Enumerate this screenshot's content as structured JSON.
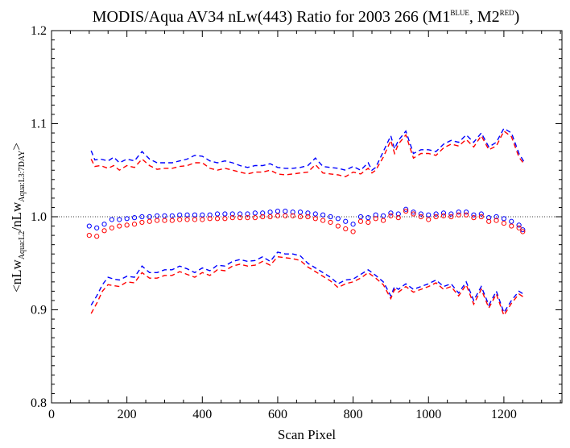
{
  "chart_data": {
    "type": "scatter",
    "title": {
      "main": "MODIS/Aqua AV34 nLw(443) Ratio for 2003 266 (M1",
      "sup1": "BLUE",
      "mid": ", M2",
      "sup2": "RED",
      "end": ")"
    },
    "xlabel": "Scan Pixel",
    "ylabel": {
      "p1": "<nLw",
      "sub1": "Aqua:L2",
      "p2": "/nLw",
      "sub2": "Aqua:L3:7DAY",
      "p3": ">"
    },
    "xlim": [
      0,
      1354
    ],
    "ylim": [
      0.8,
      1.2
    ],
    "xticks": [
      0,
      200,
      400,
      600,
      800,
      1000,
      1200
    ],
    "yticks": [
      0.8,
      0.9,
      1.0,
      1.1,
      1.2
    ],
    "ytick_labels": [
      "0.8",
      "0.9",
      "1.0",
      "1.1",
      "1.2"
    ],
    "reference_line": {
      "y": 1.0,
      "style": "dotted"
    },
    "colors": {
      "M1": "#0000ff",
      "M2": "#ff0000"
    },
    "series": [
      {
        "method": "M1",
        "kind": "mean-scatter",
        "x": [
          100,
          120,
          140,
          160,
          180,
          200,
          220,
          240,
          260,
          280,
          300,
          320,
          340,
          360,
          380,
          400,
          420,
          440,
          460,
          480,
          500,
          520,
          540,
          560,
          580,
          600,
          620,
          640,
          660,
          680,
          700,
          720,
          740,
          760,
          780,
          800,
          820,
          840,
          860,
          880,
          900,
          920,
          940,
          960,
          980,
          1000,
          1020,
          1040,
          1060,
          1080,
          1100,
          1120,
          1140,
          1160,
          1180,
          1200,
          1220,
          1240,
          1250
        ],
        "y": [
          0.99,
          0.988,
          0.992,
          0.997,
          0.997,
          0.998,
          0.999,
          1.0,
          1.0,
          1.001,
          1.001,
          1.001,
          1.002,
          1.002,
          1.002,
          1.002,
          1.002,
          1.003,
          1.003,
          1.003,
          1.003,
          1.003,
          1.004,
          1.004,
          1.005,
          1.006,
          1.006,
          1.005,
          1.005,
          1.004,
          1.003,
          1.002,
          1.0,
          0.998,
          0.995,
          0.992,
          1.0,
          0.999,
          1.002,
          1.001,
          1.004,
          1.003,
          1.008,
          1.005,
          1.003,
          1.002,
          1.003,
          1.004,
          1.003,
          1.005,
          1.005,
          1.002,
          1.003,
          0.999,
          1.0,
          0.998,
          0.995,
          0.991,
          0.986
        ]
      },
      {
        "method": "M2",
        "kind": "mean-scatter",
        "x": [
          100,
          120,
          140,
          160,
          180,
          200,
          220,
          240,
          260,
          280,
          300,
          320,
          340,
          360,
          380,
          400,
          420,
          440,
          460,
          480,
          500,
          520,
          540,
          560,
          580,
          600,
          620,
          640,
          660,
          680,
          700,
          720,
          740,
          760,
          780,
          800,
          820,
          840,
          860,
          880,
          900,
          920,
          940,
          960,
          980,
          1000,
          1020,
          1040,
          1060,
          1080,
          1100,
          1120,
          1140,
          1160,
          1180,
          1200,
          1220,
          1240,
          1250
        ],
        "y": [
          0.98,
          0.979,
          0.985,
          0.988,
          0.99,
          0.991,
          0.992,
          0.994,
          0.995,
          0.996,
          0.996,
          0.996,
          0.997,
          0.997,
          0.997,
          0.997,
          0.998,
          0.998,
          0.998,
          0.999,
          0.999,
          0.999,
          0.999,
          1.0,
          1.0,
          1.001,
          1.001,
          1.001,
          1.0,
          1.0,
          0.998,
          0.996,
          0.994,
          0.99,
          0.987,
          0.984,
          0.995,
          0.994,
          0.998,
          0.996,
          1.001,
          0.999,
          1.006,
          1.003,
          1.0,
          0.997,
          1.0,
          1.001,
          1.0,
          1.002,
          1.002,
          0.999,
          1.0,
          0.995,
          0.996,
          0.993,
          0.99,
          0.988,
          0.984
        ]
      },
      {
        "method": "M1",
        "kind": "upper-dashed",
        "x": [
          105,
          115,
          130,
          150,
          165,
          180,
          200,
          220,
          240,
          260,
          280,
          300,
          320,
          340,
          360,
          380,
          400,
          420,
          440,
          460,
          480,
          500,
          520,
          540,
          560,
          580,
          600,
          620,
          640,
          660,
          680,
          700,
          720,
          740,
          760,
          780,
          800,
          820,
          840,
          850,
          860,
          880,
          900,
          910,
          920,
          940,
          960,
          980,
          1000,
          1020,
          1040,
          1060,
          1080,
          1100,
          1120,
          1140,
          1160,
          1180,
          1200,
          1220,
          1240,
          1255
        ],
        "y": [
          1.071,
          1.061,
          1.062,
          1.06,
          1.064,
          1.058,
          1.062,
          1.06,
          1.07,
          1.062,
          1.058,
          1.058,
          1.058,
          1.06,
          1.062,
          1.066,
          1.065,
          1.06,
          1.058,
          1.06,
          1.058,
          1.055,
          1.053,
          1.055,
          1.055,
          1.057,
          1.053,
          1.052,
          1.052,
          1.053,
          1.055,
          1.063,
          1.054,
          1.053,
          1.052,
          1.05,
          1.054,
          1.05,
          1.058,
          1.05,
          1.053,
          1.07,
          1.087,
          1.073,
          1.082,
          1.092,
          1.068,
          1.072,
          1.072,
          1.07,
          1.078,
          1.082,
          1.08,
          1.088,
          1.08,
          1.09,
          1.075,
          1.08,
          1.095,
          1.09,
          1.068,
          1.058
        ]
      },
      {
        "method": "M2",
        "kind": "upper-dashed",
        "x": [
          105,
          115,
          130,
          150,
          165,
          180,
          200,
          220,
          240,
          260,
          280,
          300,
          320,
          340,
          360,
          380,
          400,
          420,
          440,
          460,
          480,
          500,
          520,
          540,
          560,
          580,
          600,
          620,
          640,
          660,
          680,
          700,
          720,
          740,
          760,
          780,
          800,
          820,
          840,
          850,
          860,
          880,
          900,
          910,
          920,
          940,
          960,
          980,
          1000,
          1020,
          1040,
          1060,
          1080,
          1100,
          1120,
          1140,
          1160,
          1180,
          1200,
          1220,
          1240,
          1255
        ],
        "y": [
          1.062,
          1.054,
          1.055,
          1.052,
          1.055,
          1.05,
          1.055,
          1.053,
          1.062,
          1.055,
          1.051,
          1.052,
          1.052,
          1.054,
          1.055,
          1.058,
          1.058,
          1.052,
          1.05,
          1.052,
          1.05,
          1.048,
          1.046,
          1.048,
          1.048,
          1.05,
          1.046,
          1.045,
          1.046,
          1.047,
          1.048,
          1.056,
          1.047,
          1.046,
          1.045,
          1.043,
          1.048,
          1.046,
          1.052,
          1.047,
          1.05,
          1.064,
          1.082,
          1.068,
          1.078,
          1.088,
          1.063,
          1.068,
          1.068,
          1.066,
          1.074,
          1.078,
          1.076,
          1.083,
          1.075,
          1.087,
          1.072,
          1.076,
          1.092,
          1.086,
          1.064,
          1.056
        ]
      },
      {
        "method": "M1",
        "kind": "lower-dashed",
        "x": [
          105,
          120,
          135,
          150,
          165,
          180,
          200,
          220,
          240,
          260,
          280,
          300,
          320,
          340,
          360,
          380,
          400,
          420,
          440,
          460,
          480,
          500,
          520,
          540,
          560,
          580,
          600,
          620,
          640,
          660,
          680,
          700,
          720,
          740,
          760,
          780,
          800,
          820,
          840,
          850,
          860,
          880,
          900,
          910,
          920,
          940,
          960,
          980,
          1000,
          1020,
          1040,
          1060,
          1080,
          1100,
          1120,
          1140,
          1160,
          1180,
          1200,
          1220,
          1240,
          1255
        ],
        "y": [
          0.905,
          0.915,
          0.927,
          0.935,
          0.933,
          0.932,
          0.936,
          0.935,
          0.947,
          0.94,
          0.94,
          0.943,
          0.943,
          0.947,
          0.944,
          0.94,
          0.945,
          0.942,
          0.948,
          0.947,
          0.952,
          0.954,
          0.952,
          0.953,
          0.957,
          0.952,
          0.962,
          0.96,
          0.96,
          0.958,
          0.95,
          0.945,
          0.94,
          0.935,
          0.928,
          0.932,
          0.933,
          0.938,
          0.943,
          0.94,
          0.937,
          0.93,
          0.915,
          0.925,
          0.922,
          0.928,
          0.922,
          0.925,
          0.928,
          0.932,
          0.925,
          0.928,
          0.918,
          0.93,
          0.91,
          0.925,
          0.905,
          0.92,
          0.897,
          0.91,
          0.92,
          0.916
        ]
      },
      {
        "method": "M2",
        "kind": "lower-dashed",
        "x": [
          105,
          120,
          135,
          150,
          165,
          180,
          200,
          220,
          240,
          260,
          280,
          300,
          320,
          340,
          360,
          380,
          400,
          420,
          440,
          460,
          480,
          500,
          520,
          540,
          560,
          580,
          600,
          620,
          640,
          660,
          680,
          700,
          720,
          740,
          760,
          780,
          800,
          820,
          840,
          850,
          860,
          880,
          900,
          910,
          920,
          940,
          960,
          980,
          1000,
          1020,
          1040,
          1060,
          1080,
          1100,
          1120,
          1140,
          1160,
          1180,
          1200,
          1220,
          1240,
          1255
        ],
        "y": [
          0.896,
          0.907,
          0.92,
          0.927,
          0.926,
          0.925,
          0.93,
          0.929,
          0.94,
          0.934,
          0.934,
          0.937,
          0.937,
          0.941,
          0.938,
          0.935,
          0.94,
          0.937,
          0.943,
          0.942,
          0.947,
          0.949,
          0.947,
          0.948,
          0.952,
          0.948,
          0.957,
          0.956,
          0.955,
          0.953,
          0.946,
          0.941,
          0.936,
          0.931,
          0.924,
          0.928,
          0.93,
          0.934,
          0.94,
          0.937,
          0.934,
          0.927,
          0.912,
          0.922,
          0.919,
          0.925,
          0.919,
          0.922,
          0.925,
          0.929,
          0.922,
          0.925,
          0.915,
          0.927,
          0.906,
          0.922,
          0.902,
          0.917,
          0.894,
          0.907,
          0.917,
          0.913
        ]
      }
    ]
  }
}
